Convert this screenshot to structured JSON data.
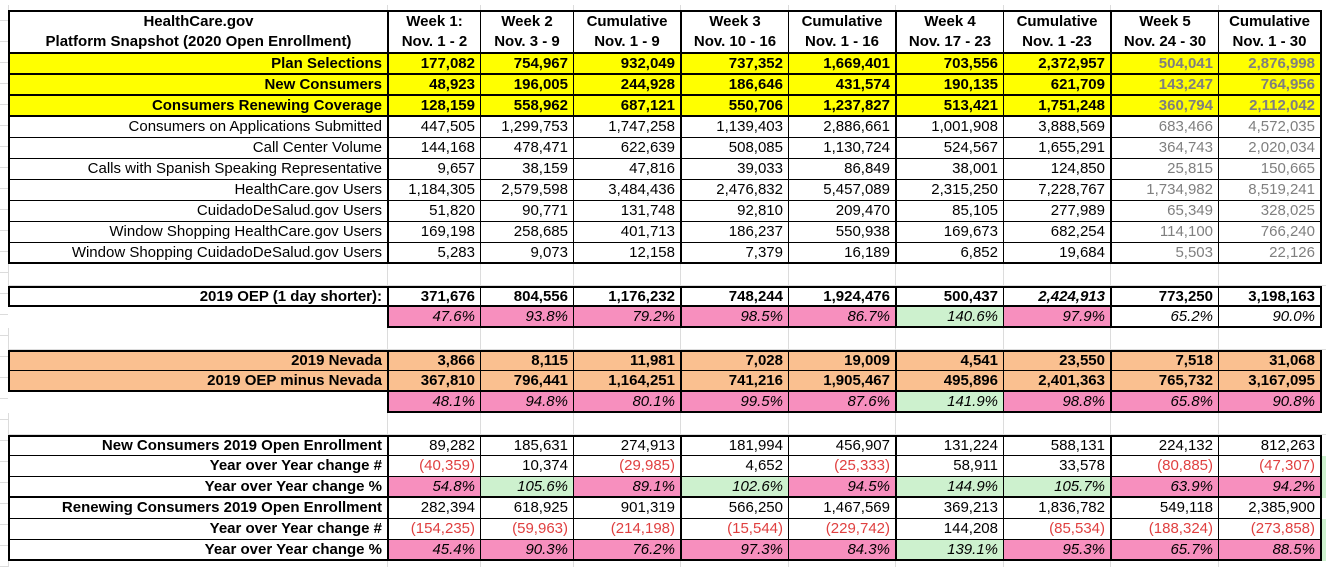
{
  "colors": {
    "highlight_yellow": "#ffff00",
    "highlight_orange": "#fac090",
    "highlight_pink": "#f78fbe",
    "highlight_green": "#cdf1ce",
    "muted_gray_text": "#7f7f7f",
    "negative_red_text": "#e04040"
  },
  "table": {
    "header": {
      "title_line1": "HealthCare.gov",
      "title_line2": "Platform Snapshot (2020 Open Enrollment)",
      "columns": [
        {
          "line1": "Week 1:",
          "line2": "Nov. 1 - 2"
        },
        {
          "line1": "Week 2",
          "line2": "Nov. 3 - 9"
        },
        {
          "line1": "Cumulative",
          "line2": "Nov. 1 - 9"
        },
        {
          "line1": "Week 3",
          "line2": "Nov. 10 - 16"
        },
        {
          "line1": "Cumulative",
          "line2": "Nov. 1 - 16"
        },
        {
          "line1": "Week 4",
          "line2": "Nov. 17 - 23"
        },
        {
          "line1": "Cumulative",
          "line2": "Nov. 1 -23"
        },
        {
          "line1": "Week 5",
          "line2": "Nov. 24 - 30"
        },
        {
          "line1": "Cumulative",
          "line2": "Nov. 1 - 30"
        }
      ]
    },
    "rows": [
      {
        "k": "y",
        "label": "Plan Selections",
        "cells": [
          {
            "v": "177,082"
          },
          {
            "v": "754,967"
          },
          {
            "v": "932,049"
          },
          {
            "v": "737,352"
          },
          {
            "v": "1,669,401"
          },
          {
            "v": "703,556"
          },
          {
            "v": "2,372,957"
          },
          {
            "v": "504,041",
            "s": "gray"
          },
          {
            "v": "2,876,998",
            "s": "gray"
          }
        ]
      },
      {
        "k": "y",
        "label": "New Consumers",
        "cells": [
          {
            "v": "48,923"
          },
          {
            "v": "196,005"
          },
          {
            "v": "244,928"
          },
          {
            "v": "186,646"
          },
          {
            "v": "431,574"
          },
          {
            "v": "190,135"
          },
          {
            "v": "621,709"
          },
          {
            "v": "143,247",
            "s": "gray"
          },
          {
            "v": "764,956",
            "s": "gray"
          }
        ]
      },
      {
        "k": "y",
        "label": "Consumers Renewing Coverage",
        "cells": [
          {
            "v": "128,159"
          },
          {
            "v": "558,962"
          },
          {
            "v": "687,121"
          },
          {
            "v": "550,706"
          },
          {
            "v": "1,237,827"
          },
          {
            "v": "513,421"
          },
          {
            "v": "1,751,248"
          },
          {
            "v": "360,794",
            "s": "gray"
          },
          {
            "v": "2,112,042",
            "s": "gray"
          }
        ]
      },
      {
        "k": "p",
        "label": "Consumers on Applications Submitted",
        "cells": [
          {
            "v": "447,505"
          },
          {
            "v": "1,299,753"
          },
          {
            "v": "1,747,258"
          },
          {
            "v": "1,139,403"
          },
          {
            "v": "2,886,661"
          },
          {
            "v": "1,001,908"
          },
          {
            "v": "3,888,569"
          },
          {
            "v": "683,466",
            "s": "gray"
          },
          {
            "v": "4,572,035",
            "s": "gray"
          }
        ]
      },
      {
        "k": "p",
        "label": "Call Center Volume",
        "cells": [
          {
            "v": "144,168"
          },
          {
            "v": "478,471"
          },
          {
            "v": "622,639"
          },
          {
            "v": "508,085"
          },
          {
            "v": "1,130,724"
          },
          {
            "v": "524,567"
          },
          {
            "v": "1,655,291"
          },
          {
            "v": "364,743",
            "s": "gray"
          },
          {
            "v": "2,020,034",
            "s": "gray"
          }
        ]
      },
      {
        "k": "p",
        "label": "Calls with Spanish Speaking Representative",
        "cells": [
          {
            "v": "9,657"
          },
          {
            "v": "38,159"
          },
          {
            "v": "47,816"
          },
          {
            "v": "39,033"
          },
          {
            "v": "86,849"
          },
          {
            "v": "38,001"
          },
          {
            "v": "124,850"
          },
          {
            "v": "25,815",
            "s": "gray"
          },
          {
            "v": "150,665",
            "s": "gray"
          }
        ]
      },
      {
        "k": "p",
        "label": "HealthCare.gov Users",
        "cells": [
          {
            "v": "1,184,305"
          },
          {
            "v": "2,579,598"
          },
          {
            "v": "3,484,436"
          },
          {
            "v": "2,476,832"
          },
          {
            "v": "5,457,089"
          },
          {
            "v": "2,315,250"
          },
          {
            "v": "7,228,767"
          },
          {
            "v": "1,734,982",
            "s": "gray"
          },
          {
            "v": "8,519,241",
            "s": "gray"
          }
        ]
      },
      {
        "k": "p",
        "label": "CuidadoDeSalud.gov Users",
        "cells": [
          {
            "v": "51,820"
          },
          {
            "v": "90,771"
          },
          {
            "v": "131,748"
          },
          {
            "v": "92,810"
          },
          {
            "v": "209,470"
          },
          {
            "v": "85,105"
          },
          {
            "v": "277,989"
          },
          {
            "v": "65,349",
            "s": "gray"
          },
          {
            "v": "328,025",
            "s": "gray"
          }
        ]
      },
      {
        "k": "p",
        "label": "Window Shopping HealthCare.gov Users",
        "cells": [
          {
            "v": "169,198"
          },
          {
            "v": "258,685"
          },
          {
            "v": "401,713"
          },
          {
            "v": "186,237"
          },
          {
            "v": "550,938"
          },
          {
            "v": "169,673"
          },
          {
            "v": "682,254"
          },
          {
            "v": "114,100",
            "s": "gray"
          },
          {
            "v": "766,240",
            "s": "gray"
          }
        ]
      },
      {
        "k": "pe",
        "label": "Window Shopping CuidadoDeSalud.gov Users",
        "cells": [
          {
            "v": "5,283"
          },
          {
            "v": "9,073"
          },
          {
            "v": "12,158"
          },
          {
            "v": "7,379"
          },
          {
            "v": "16,189"
          },
          {
            "v": "6,852"
          },
          {
            "v": "19,684"
          },
          {
            "v": "5,503",
            "s": "gray"
          },
          {
            "v": "22,126",
            "s": "gray"
          }
        ]
      },
      {
        "k": "blank"
      },
      {
        "k": "oep",
        "label": "2019 OEP (1 day shorter):",
        "cells": [
          {
            "v": "371,676"
          },
          {
            "v": "804,556"
          },
          {
            "v": "1,176,232"
          },
          {
            "v": "748,244"
          },
          {
            "v": "1,924,476"
          },
          {
            "v": "500,437"
          },
          {
            "v": "2,424,913",
            "s": "i"
          },
          {
            "v": "773,250"
          },
          {
            "v": "3,198,163"
          }
        ]
      },
      {
        "k": "pct",
        "label": "",
        "cells": [
          {
            "v": "47.6%",
            "s": "pink"
          },
          {
            "v": "93.8%",
            "s": "pink"
          },
          {
            "v": "79.2%",
            "s": "pink"
          },
          {
            "v": "98.5%",
            "s": "pink"
          },
          {
            "v": "86.7%",
            "s": "pink"
          },
          {
            "v": "140.6%",
            "s": "green"
          },
          {
            "v": "97.9%",
            "s": "pink"
          },
          {
            "v": "65.2%"
          },
          {
            "v": "90.0%"
          }
        ]
      },
      {
        "k": "blank"
      },
      {
        "k": "nvf",
        "label": "2019 Nevada",
        "cells": [
          {
            "v": "3,866"
          },
          {
            "v": "8,115"
          },
          {
            "v": "11,981"
          },
          {
            "v": "7,028"
          },
          {
            "v": "19,009"
          },
          {
            "v": "4,541"
          },
          {
            "v": "23,550"
          },
          {
            "v": "7,518"
          },
          {
            "v": "31,068"
          }
        ]
      },
      {
        "k": "nve",
        "label": "2019 OEP minus Nevada",
        "cells": [
          {
            "v": "367,810"
          },
          {
            "v": "796,441"
          },
          {
            "v": "1,164,251"
          },
          {
            "v": "741,216"
          },
          {
            "v": "1,905,467"
          },
          {
            "v": "495,896"
          },
          {
            "v": "2,401,363"
          },
          {
            "v": "765,732"
          },
          {
            "v": "3,167,095"
          }
        ]
      },
      {
        "k": "pct",
        "label": "",
        "cells": [
          {
            "v": "48.1%",
            "s": "pink"
          },
          {
            "v": "94.8%",
            "s": "pink"
          },
          {
            "v": "80.1%",
            "s": "pink"
          },
          {
            "v": "99.5%",
            "s": "pink"
          },
          {
            "v": "87.6%",
            "s": "pink"
          },
          {
            "v": "141.9%",
            "s": "green"
          },
          {
            "v": "98.8%",
            "s": "pink"
          },
          {
            "v": "65.8%",
            "s": "pink"
          },
          {
            "v": "90.8%",
            "s": "pink"
          }
        ]
      },
      {
        "k": "blank"
      },
      {
        "k": "bh",
        "label": "New Consumers 2019 Open Enrollment",
        "cells": [
          {
            "v": "89,282"
          },
          {
            "v": "185,631"
          },
          {
            "v": "274,913"
          },
          {
            "v": "181,994"
          },
          {
            "v": "456,907"
          },
          {
            "v": "131,224"
          },
          {
            "v": "588,131"
          },
          {
            "v": "224,132"
          },
          {
            "v": "812,263"
          }
        ]
      },
      {
        "k": "bn",
        "label": "Year over Year change #",
        "sliver": true,
        "cells": [
          {
            "v": "(40,359)",
            "s": "red"
          },
          {
            "v": "10,374"
          },
          {
            "v": "(29,985)",
            "s": "red"
          },
          {
            "v": "4,652"
          },
          {
            "v": "(25,333)",
            "s": "red"
          },
          {
            "v": "58,911"
          },
          {
            "v": "33,578"
          },
          {
            "v": "(80,885)",
            "s": "red"
          },
          {
            "v": "(47,307)",
            "s": "red"
          }
        ]
      },
      {
        "k": "bp",
        "label": "Year over Year change %",
        "sliver": true,
        "cells": [
          {
            "v": "54.8%",
            "s": "pink"
          },
          {
            "v": "105.6%",
            "s": "green"
          },
          {
            "v": "89.1%",
            "s": "pink"
          },
          {
            "v": "102.6%",
            "s": "green"
          },
          {
            "v": "94.5%",
            "s": "pink"
          },
          {
            "v": "144.9%",
            "s": "green"
          },
          {
            "v": "105.7%",
            "s": "green"
          },
          {
            "v": "63.9%",
            "s": "pink"
          },
          {
            "v": "94.2%",
            "s": "pink"
          }
        ]
      },
      {
        "k": "bs",
        "label": "Renewing Consumers 2019 Open Enrollment",
        "cells": [
          {
            "v": "282,394"
          },
          {
            "v": "618,925"
          },
          {
            "v": "901,319"
          },
          {
            "v": "566,250"
          },
          {
            "v": "1,467,569"
          },
          {
            "v": "369,213"
          },
          {
            "v": "1,836,782"
          },
          {
            "v": "549,118"
          },
          {
            "v": "2,385,900"
          }
        ]
      },
      {
        "k": "bn",
        "label": "Year over Year change #",
        "sliver": true,
        "cells": [
          {
            "v": "(154,235)",
            "s": "red"
          },
          {
            "v": "(59,963)",
            "s": "red"
          },
          {
            "v": "(214,198)",
            "s": "red"
          },
          {
            "v": "(15,544)",
            "s": "red"
          },
          {
            "v": "(229,742)",
            "s": "red"
          },
          {
            "v": "144,208"
          },
          {
            "v": "(85,534)",
            "s": "red"
          },
          {
            "v": "(188,324)",
            "s": "red"
          },
          {
            "v": "(273,858)",
            "s": "red"
          }
        ]
      },
      {
        "k": "bp",
        "label": "Year over Year change %",
        "sliver": true,
        "cells": [
          {
            "v": "45.4%",
            "s": "pink"
          },
          {
            "v": "90.3%",
            "s": "pink"
          },
          {
            "v": "76.2%",
            "s": "pink"
          },
          {
            "v": "97.3%",
            "s": "pink"
          },
          {
            "v": "84.3%",
            "s": "pink"
          },
          {
            "v": "139.1%",
            "s": "green"
          },
          {
            "v": "95.3%",
            "s": "pink"
          },
          {
            "v": "65.7%",
            "s": "pink"
          },
          {
            "v": "88.5%",
            "s": "pink"
          }
        ]
      }
    ]
  }
}
